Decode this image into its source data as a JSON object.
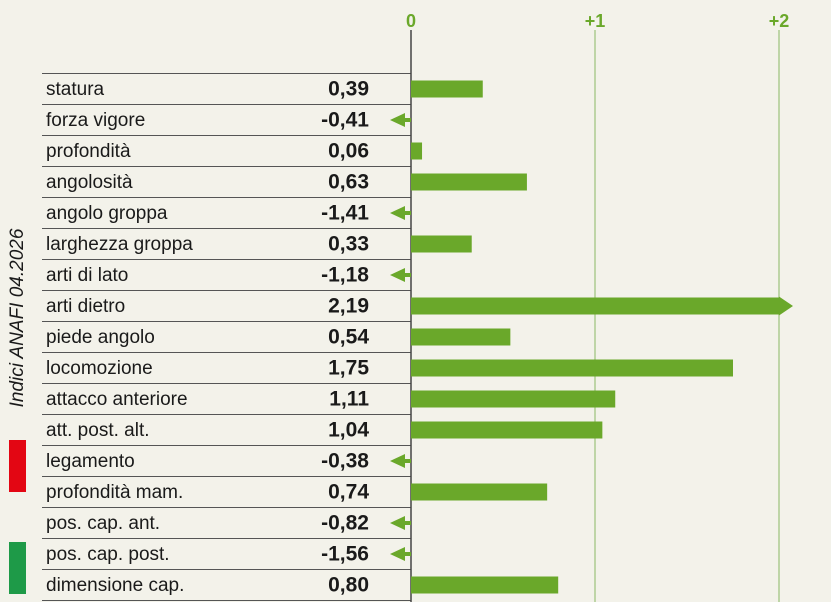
{
  "chart_data": {
    "type": "bar",
    "orientation": "horizontal",
    "side_label": "Indici ANAFI 04.2026",
    "categories": [
      "statura",
      "forza vigore",
      "profondità",
      "angolosità",
      "angolo groppa",
      "larghezza groppa",
      "arti di lato",
      "arti dietro",
      "piede angolo",
      "locomozione",
      "attacco anteriore",
      "att. post. alt.",
      "legamento",
      "profondità mam.",
      "pos. cap. ant.",
      "pos. cap. post.",
      "dimensione cap."
    ],
    "values": [
      0.39,
      -0.41,
      0.06,
      0.63,
      -1.41,
      0.33,
      -1.18,
      2.19,
      0.54,
      1.75,
      1.11,
      1.04,
      -0.38,
      0.74,
      -0.82,
      -1.56,
      0.8
    ],
    "value_labels": [
      "0,39",
      "-0,41",
      "0,06",
      "0,63",
      "-1,41",
      "0,33",
      "-1,18",
      "2,19",
      "0,54",
      "1,75",
      "1,11",
      "1,04",
      "-0,38",
      "0,74",
      "-0,82",
      "-1,56",
      "0,80"
    ],
    "color": "#6aa82a",
    "xlim": [
      0,
      2
    ],
    "xticks": [
      0,
      {
        "value": 1,
        "label": "+1"
      },
      {
        "value": 2,
        "label": "+2"
      }
    ],
    "grid": true
  }
}
